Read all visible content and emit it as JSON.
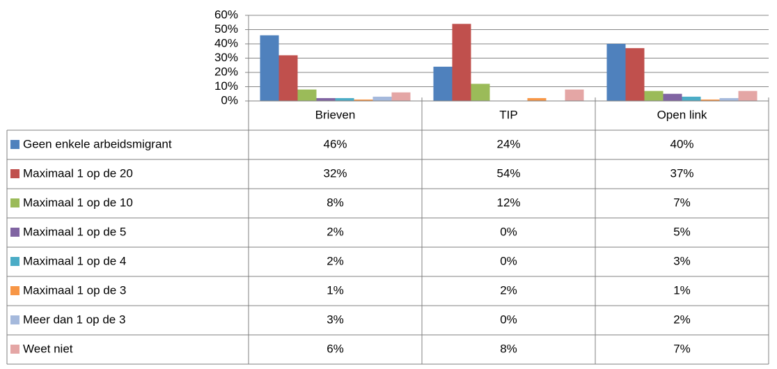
{
  "chart_data": {
    "type": "bar",
    "categories": [
      "Brieven",
      "TIP",
      "Open link"
    ],
    "series": [
      {
        "name": "Geen enkele arbeidsmigrant",
        "color": "#4F81BD",
        "values": [
          46,
          24,
          40
        ],
        "value_labels": [
          "46%",
          "24%",
          "40%"
        ]
      },
      {
        "name": "Maximaal 1 op de 20",
        "color": "#C0504D",
        "values": [
          32,
          54,
          37
        ],
        "value_labels": [
          "32%",
          "54%",
          "37%"
        ]
      },
      {
        "name": "Maximaal 1 op de 10",
        "color": "#9BBB59",
        "values": [
          8,
          12,
          7
        ],
        "value_labels": [
          "8%",
          "12%",
          "7%"
        ]
      },
      {
        "name": "Maximaal 1 op de 5",
        "color": "#8064A2",
        "values": [
          2,
          0,
          5
        ],
        "value_labels": [
          "2%",
          "0%",
          "5%"
        ]
      },
      {
        "name": "Maximaal 1 op de 4",
        "color": "#4BACC6",
        "values": [
          2,
          0,
          3
        ],
        "value_labels": [
          "2%",
          "0%",
          "3%"
        ]
      },
      {
        "name": "Maximaal 1 op de 3",
        "color": "#F79646",
        "values": [
          1,
          2,
          1
        ],
        "value_labels": [
          "1%",
          "2%",
          "1%"
        ]
      },
      {
        "name": "Meer dan 1 op de 3",
        "color": "#A5B9DC",
        "values": [
          3,
          0,
          2
        ],
        "value_labels": [
          "3%",
          "0%",
          "2%"
        ]
      },
      {
        "name": "Weet niet",
        "color": "#E4A6A5",
        "values": [
          6,
          8,
          7
        ],
        "value_labels": [
          "6%",
          "8%",
          "7%"
        ]
      }
    ],
    "ylim": [
      0,
      60
    ],
    "yticks": [
      {
        "value": 0,
        "label": "0%"
      },
      {
        "value": 10,
        "label": "10%"
      },
      {
        "value": 20,
        "label": "20%"
      },
      {
        "value": 30,
        "label": "30%"
      },
      {
        "value": 40,
        "label": "40%"
      },
      {
        "value": 50,
        "label": "50%"
      },
      {
        "value": 60,
        "label": "60%"
      }
    ],
    "grid": true
  }
}
